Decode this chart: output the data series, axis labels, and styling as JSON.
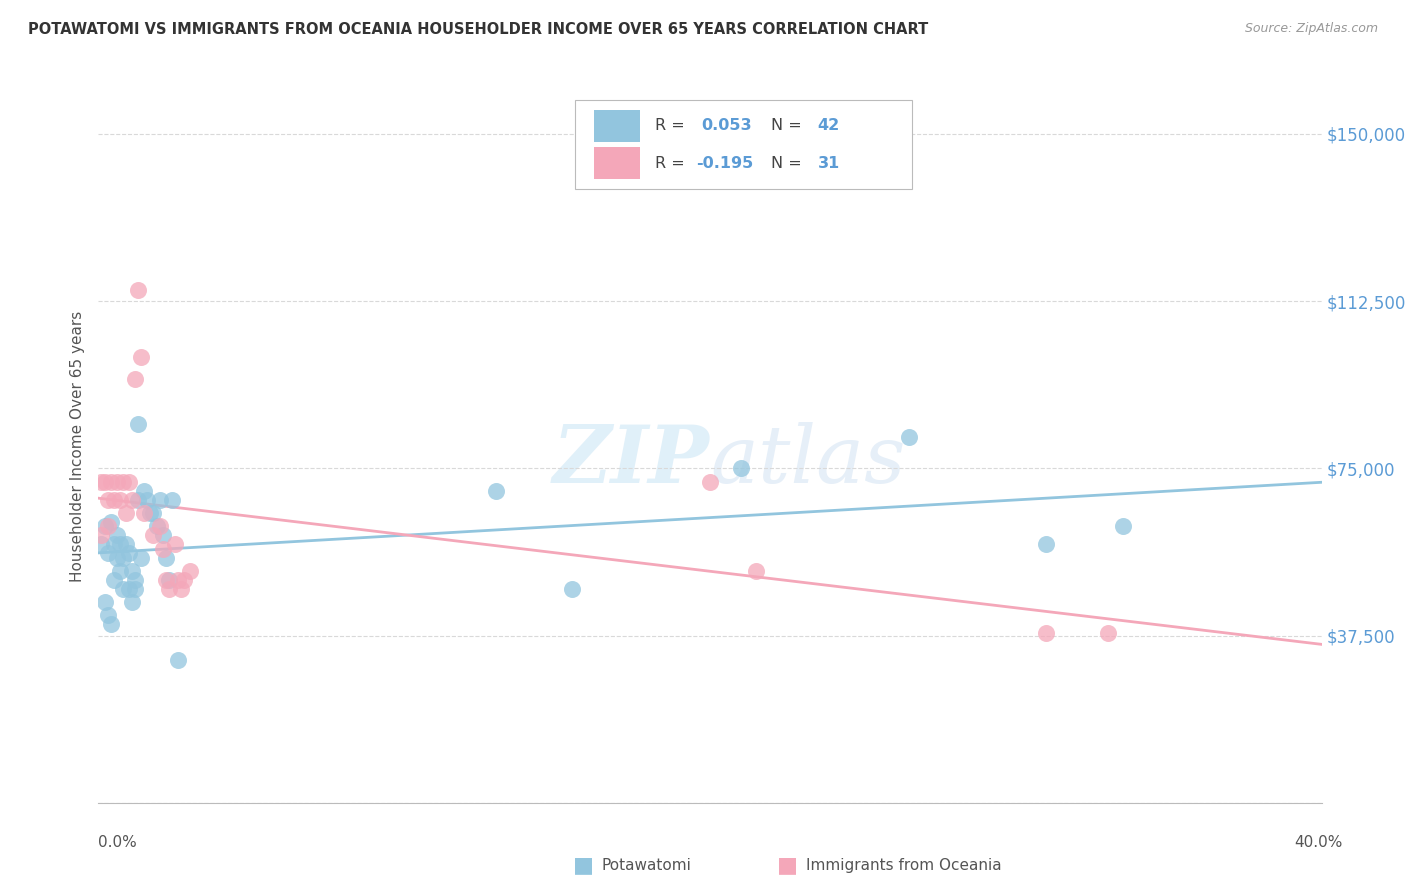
{
  "title": "POTAWATOMI VS IMMIGRANTS FROM OCEANIA HOUSEHOLDER INCOME OVER 65 YEARS CORRELATION CHART",
  "source": "Source: ZipAtlas.com",
  "ylabel": "Householder Income Over 65 years",
  "y_ticks": [
    0,
    37500,
    75000,
    112500,
    150000
  ],
  "y_tick_labels": [
    "",
    "$37,500",
    "$75,000",
    "$112,500",
    "$150,000"
  ],
  "xmin": 0.0,
  "xmax": 0.4,
  "ymin": 0,
  "ymax": 160000,
  "watermark_zip": "ZIP",
  "watermark_atlas": "atlas",
  "blue_color": "#92c5de",
  "pink_color": "#f4a7b9",
  "line_blue_color": "#92c5de",
  "line_pink_color": "#f4a7b9",
  "blue_r": 0.053,
  "blue_n": 42,
  "pink_r": -0.195,
  "pink_n": 31,
  "blue_scatter_x": [
    0.001,
    0.002,
    0.003,
    0.004,
    0.005,
    0.005,
    0.006,
    0.006,
    0.007,
    0.007,
    0.008,
    0.008,
    0.009,
    0.01,
    0.01,
    0.011,
    0.011,
    0.012,
    0.012,
    0.013,
    0.014,
    0.015,
    0.016,
    0.017,
    0.018,
    0.019,
    0.02,
    0.021,
    0.022,
    0.023,
    0.024,
    0.026,
    0.13,
    0.155,
    0.21,
    0.265,
    0.31,
    0.335,
    0.002,
    0.003,
    0.004,
    0.013
  ],
  "blue_scatter_y": [
    58000,
    62000,
    56000,
    63000,
    58000,
    50000,
    60000,
    55000,
    58000,
    52000,
    55000,
    48000,
    58000,
    56000,
    48000,
    52000,
    45000,
    48000,
    50000,
    68000,
    55000,
    70000,
    68000,
    65000,
    65000,
    62000,
    68000,
    60000,
    55000,
    50000,
    68000,
    32000,
    70000,
    48000,
    75000,
    82000,
    58000,
    62000,
    45000,
    42000,
    40000,
    85000
  ],
  "pink_scatter_x": [
    0.001,
    0.002,
    0.003,
    0.003,
    0.004,
    0.005,
    0.006,
    0.007,
    0.008,
    0.009,
    0.01,
    0.011,
    0.012,
    0.013,
    0.014,
    0.015,
    0.018,
    0.02,
    0.021,
    0.022,
    0.023,
    0.025,
    0.026,
    0.027,
    0.028,
    0.03,
    0.2,
    0.215,
    0.31,
    0.33,
    0.001
  ],
  "pink_scatter_y": [
    72000,
    72000,
    68000,
    62000,
    72000,
    68000,
    72000,
    68000,
    72000,
    65000,
    72000,
    68000,
    95000,
    115000,
    100000,
    65000,
    60000,
    62000,
    57000,
    50000,
    48000,
    58000,
    50000,
    48000,
    50000,
    52000,
    72000,
    52000,
    38000,
    38000,
    60000
  ],
  "background_color": "#ffffff",
  "grid_color": "#d9d9d9",
  "legend_label_blue": "Potawatomi",
  "legend_label_pink": "Immigrants from Oceania"
}
